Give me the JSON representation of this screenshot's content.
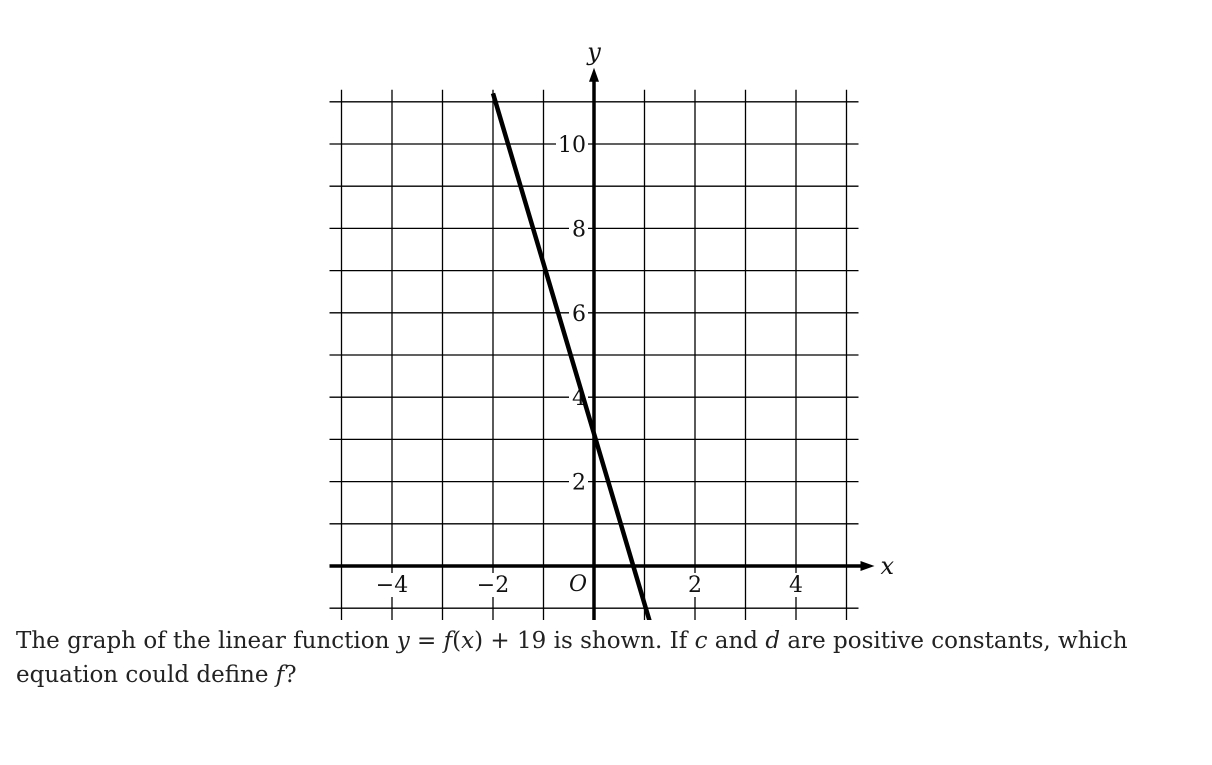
{
  "chart_data": {
    "type": "line",
    "xlabel": "x",
    "ylabel": "y",
    "origin_label": "O",
    "xlim": [
      -5,
      5
    ],
    "ylim": [
      -1,
      11
    ],
    "grid": true,
    "x_ticks": [
      {
        "value": -4,
        "label": "−4"
      },
      {
        "value": -2,
        "label": "−2"
      },
      {
        "value": 2,
        "label": "2"
      },
      {
        "value": 4,
        "label": "4"
      }
    ],
    "y_ticks": [
      {
        "value": 2,
        "label": "2"
      },
      {
        "value": 4,
        "label": "4"
      },
      {
        "value": 6,
        "label": "6"
      },
      {
        "value": 8,
        "label": "8"
      },
      {
        "value": 10,
        "label": "10"
      }
    ],
    "series": [
      {
        "x": [
          -2,
          1.1
        ],
        "y": [
          11.2,
          -1.3
        ],
        "color": "#000000"
      }
    ]
  },
  "question": {
    "part1": "The graph of the linear function ",
    "eq_y": "y",
    "eq_equals": " = ",
    "eq_f": "f",
    "eq_paren_open": "(",
    "eq_x": "x",
    "eq_paren_close": ")",
    "eq_plus": " + 19",
    "part2": " is shown. If ",
    "var_c": "c",
    "part3": " and ",
    "var_d": "d",
    "part4": " are positive constants, which equation could define ",
    "var_f": "f",
    "part5": "?"
  }
}
